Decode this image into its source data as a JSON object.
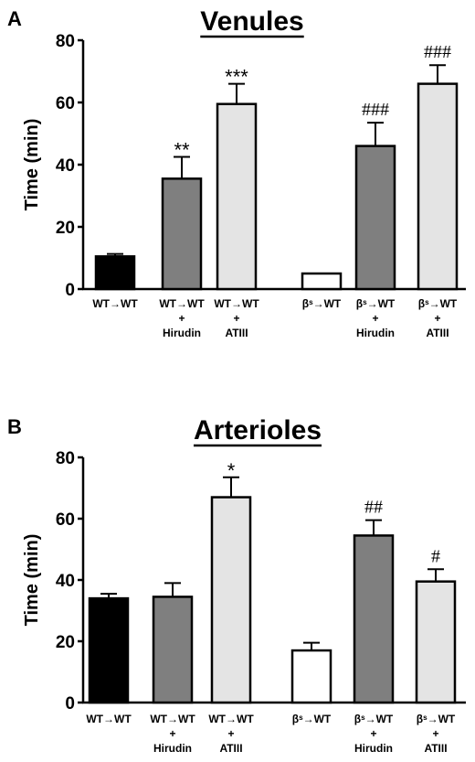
{
  "panels": [
    {
      "letter": "A",
      "title": "Venules"
    },
    {
      "letter": "B",
      "title": "Arterioles"
    }
  ],
  "chart_data": [
    {
      "type": "bar",
      "panel": "A",
      "title": "Venules",
      "ylabel": "Time (min)",
      "ylim": [
        0,
        80
      ],
      "yticks": [
        0,
        20,
        40,
        60,
        80
      ],
      "categories": [
        [
          "WT→WT"
        ],
        [
          "WT→WT",
          "+",
          "Hirudin"
        ],
        [
          "WT→WT",
          "+",
          "ATIII"
        ],
        [
          "βˢ→WT"
        ],
        [
          "βˢ→WT",
          "+",
          "Hirudin"
        ],
        [
          "βˢ→WT",
          "+",
          "ATIII"
        ]
      ],
      "values": [
        10.5,
        35.5,
        59.5,
        5,
        46,
        66
      ],
      "errors": [
        0.8,
        7,
        6.5,
        0,
        7.5,
        6
      ],
      "significance": [
        "",
        "**",
        "***",
        "",
        "###",
        "###"
      ],
      "bar_colors": [
        "#000000",
        "#7f7f7f",
        "#e4e4e4",
        "#ffffff",
        "#7f7f7f",
        "#e4e4e4"
      ]
    },
    {
      "type": "bar",
      "panel": "B",
      "title": "Arterioles",
      "ylabel": "Time (min)",
      "ylim": [
        0,
        80
      ],
      "yticks": [
        0,
        20,
        40,
        60,
        80
      ],
      "categories": [
        [
          "WT→WT"
        ],
        [
          "WT→WT",
          "+",
          "Hirudin"
        ],
        [
          "WT→WT",
          "+",
          "ATIII"
        ],
        [
          "βˢ→WT"
        ],
        [
          "βˢ→WT",
          "+",
          "Hirudin"
        ],
        [
          "βˢ→WT",
          "+",
          "ATIII"
        ]
      ],
      "values": [
        34,
        34.5,
        67,
        17,
        54.5,
        39.5
      ],
      "errors": [
        1.5,
        4.5,
        6.5,
        2.5,
        5,
        4
      ],
      "significance": [
        "",
        "",
        "*",
        "",
        "##",
        "#"
      ],
      "bar_colors": [
        "#000000",
        "#7f7f7f",
        "#e4e4e4",
        "#ffffff",
        "#7f7f7f",
        "#e4e4e4"
      ]
    }
  ]
}
